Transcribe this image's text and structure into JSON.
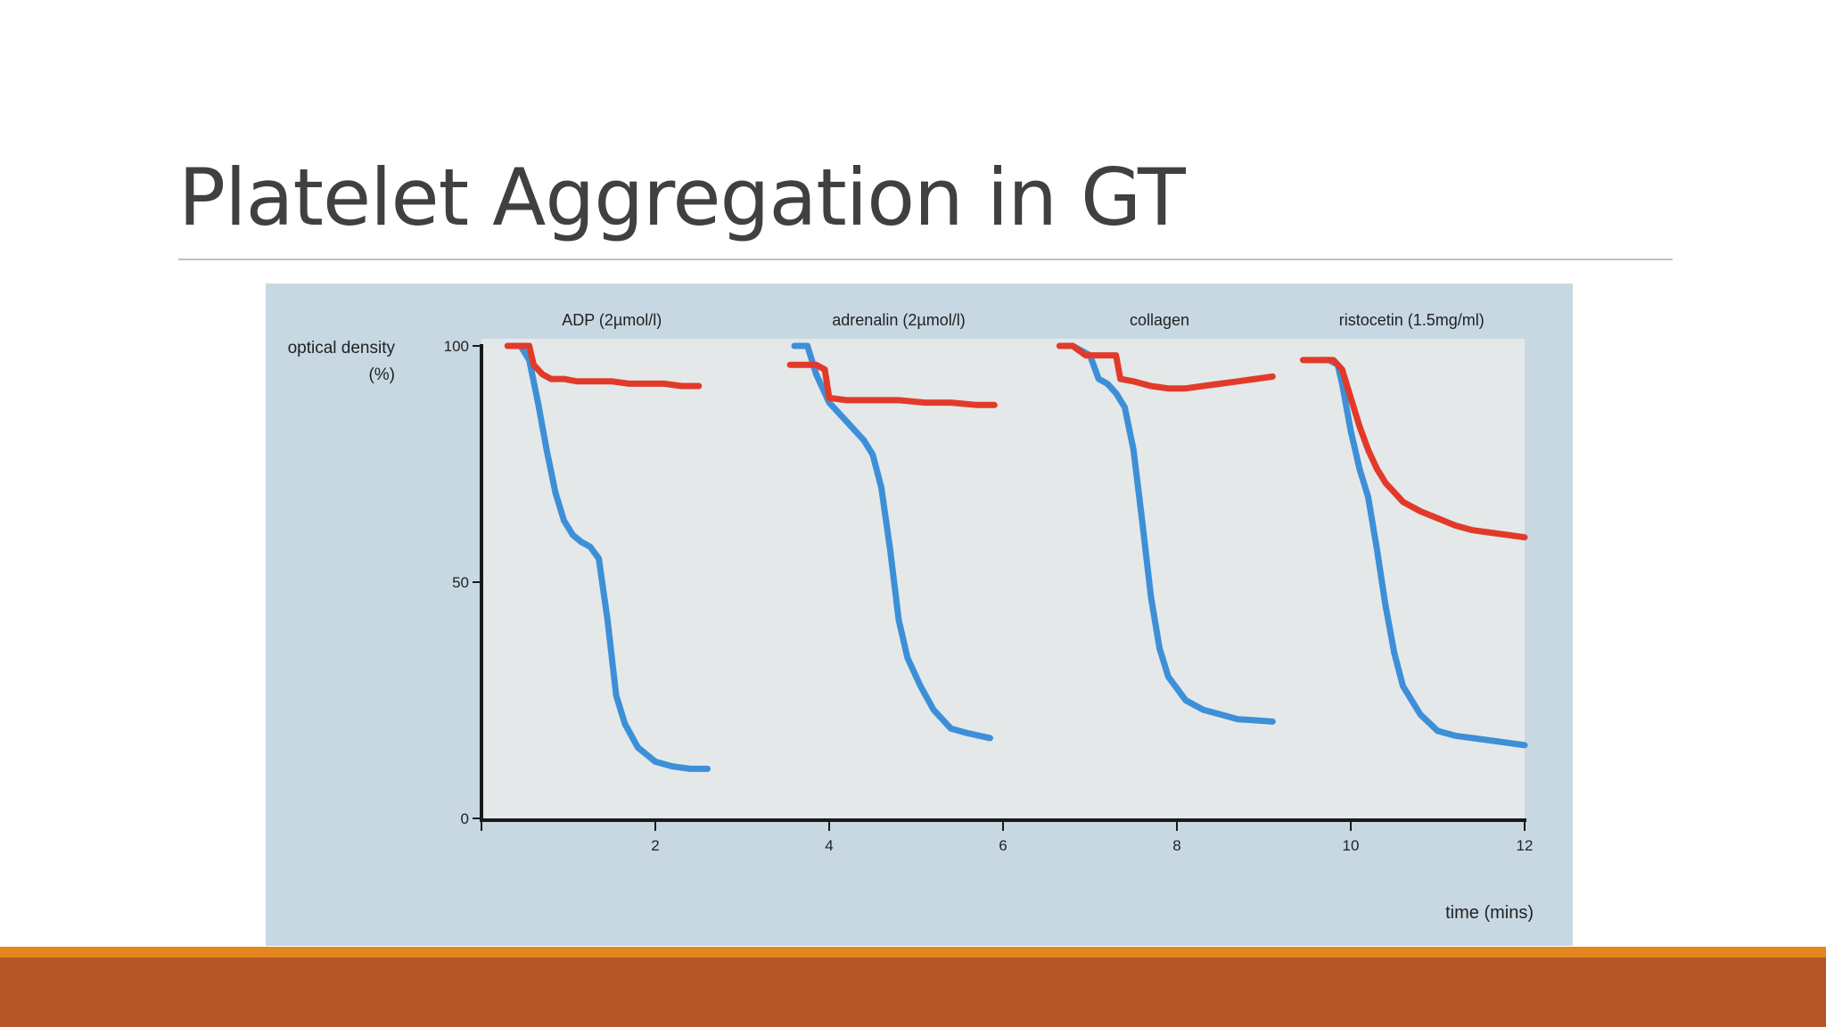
{
  "slide": {
    "title": "Platelet Aggregation in GT"
  },
  "colors": {
    "title_text": "#404040",
    "rule": "#bfbfbf",
    "figure_background": "#c7d8e3",
    "plot_background": "#e4e8e8",
    "axis": "#1a1a1a",
    "footer_band": "#b65627",
    "footer_accent": "#e2861d"
  },
  "chart_data": {
    "type": "line",
    "ylabel": [
      "optical density",
      "(%)"
    ],
    "xlabel": "time (mins)",
    "xlim": [
      0,
      12
    ],
    "ylim": [
      0,
      100
    ],
    "y_ticks": [
      0,
      50,
      100
    ],
    "x_ticks": [
      2,
      4,
      6,
      8,
      10,
      12
    ],
    "panel_titles": [
      {
        "label": "ADP (2µmol/l)",
        "x_center": 1.5
      },
      {
        "label": "adrenalin (2µmol/l)",
        "x_center": 4.8
      },
      {
        "label": "collagen",
        "x_center": 7.8
      },
      {
        "label": "ristocetin (1.5mg/ml)",
        "x_center": 10.7
      }
    ],
    "series": [
      {
        "color": "#3d8fd8",
        "segments": [
          {
            "x": [
              0.3,
              0.45,
              0.55,
              0.65,
              0.75,
              0.85,
              0.95,
              1.05,
              1.15,
              1.25,
              1.35,
              1.45,
              1.55,
              1.65,
              1.8,
              2.0,
              2.2,
              2.4,
              2.6
            ],
            "y": [
              100,
              100,
              97,
              88,
              78,
              69,
              63,
              60,
              58.5,
              57.5,
              55,
              42,
              26,
              20,
              15,
              12,
              11,
              10.5,
              10.5
            ]
          },
          {
            "x": [
              3.6,
              3.75,
              3.85,
              4.0,
              4.2,
              4.4,
              4.5,
              4.6,
              4.7,
              4.8,
              4.9,
              5.05,
              5.2,
              5.4,
              5.6,
              5.85
            ],
            "y": [
              100,
              100,
              94,
              88,
              84,
              80,
              77,
              70,
              57,
              42,
              34,
              28,
              23,
              19,
              18,
              17
            ]
          },
          {
            "x": [
              6.65,
              6.8,
              7.0,
              7.1,
              7.2,
              7.3,
              7.4,
              7.5,
              7.6,
              7.7,
              7.8,
              7.9,
              8.1,
              8.3,
              8.5,
              8.7,
              9.1
            ],
            "y": [
              100,
              100,
              98,
              93,
              92,
              90,
              87,
              78,
              63,
              47,
              36,
              30,
              25,
              23,
              22,
              21,
              20.5
            ]
          },
          {
            "x": [
              9.6,
              9.75,
              9.85,
              9.9,
              10.0,
              10.1,
              10.2,
              10.3,
              10.4,
              10.5,
              10.6,
              10.8,
              11.0,
              11.2,
              11.4,
              11.6,
              11.8,
              12.0
            ],
            "y": [
              97,
              97,
              96,
              92,
              82,
              74,
              68,
              57,
              45,
              35,
              28,
              22,
              18.5,
              17.5,
              17,
              16.5,
              16,
              15.5
            ]
          }
        ]
      },
      {
        "color": "#e23a2a",
        "segments": [
          {
            "x": [
              0.3,
              0.4,
              0.55,
              0.6,
              0.7,
              0.8,
              0.95,
              1.1,
              1.3,
              1.5,
              1.7,
              1.9,
              2.1,
              2.3,
              2.5
            ],
            "y": [
              100,
              100,
              100,
              96,
              94,
              93,
              93,
              92.5,
              92.5,
              92.5,
              92,
              92,
              92,
              91.5,
              91.5
            ]
          },
          {
            "x": [
              3.55,
              3.7,
              3.85,
              3.95,
              4.0,
              4.2,
              4.5,
              4.8,
              5.1,
              5.4,
              5.7,
              5.9
            ],
            "y": [
              96,
              96,
              96,
              95,
              89,
              88.5,
              88.5,
              88.5,
              88,
              88,
              87.5,
              87.5
            ]
          },
          {
            "x": [
              6.65,
              6.8,
              6.95,
              7.1,
              7.3,
              7.35,
              7.5,
              7.7,
              7.9,
              8.1,
              8.3,
              8.5,
              8.7,
              8.9,
              9.1
            ],
            "y": [
              100,
              100,
              98,
              98,
              98,
              93,
              92.5,
              91.5,
              91,
              91,
              91.5,
              92,
              92.5,
              93,
              93.5
            ]
          },
          {
            "x": [
              9.45,
              9.6,
              9.8,
              9.9,
              10.0,
              10.1,
              10.2,
              10.3,
              10.4,
              10.5,
              10.6,
              10.8,
              11.0,
              11.2,
              11.4,
              11.6,
              11.8,
              12.0
            ],
            "y": [
              97,
              97,
              97,
              95,
              89,
              83,
              78,
              74,
              71,
              69,
              67,
              65,
              63.5,
              62,
              61,
              60.5,
              60,
              59.5
            ]
          }
        ]
      }
    ]
  }
}
